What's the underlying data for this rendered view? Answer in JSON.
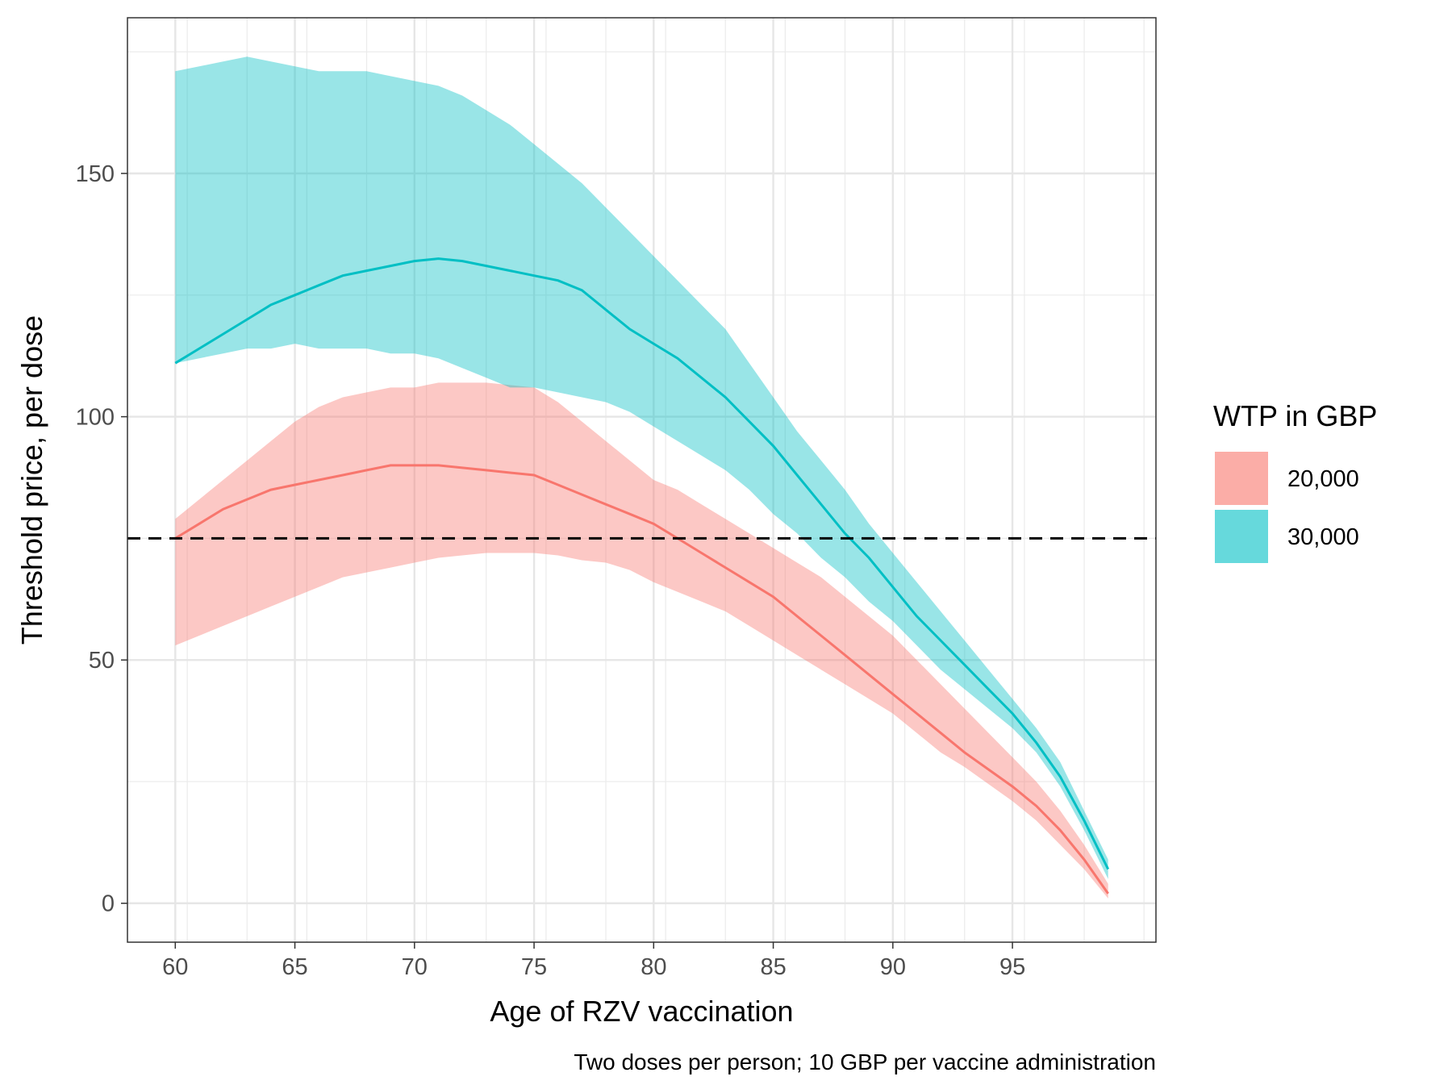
{
  "chart_data": {
    "type": "area",
    "title": "",
    "xlabel": "Age of RZV vaccination",
    "ylabel": "Threshold price, per dose",
    "caption": "Two doses per person; 10 GBP per vaccine administration",
    "xlim": [
      58,
      101
    ],
    "ylim": [
      -8,
      182
    ],
    "x_ticks": [
      60,
      65,
      70,
      75,
      80,
      85,
      90,
      95
    ],
    "x_tick_labels": [
      "60",
      "65",
      "70",
      "75",
      "80",
      "85",
      "90",
      "95"
    ],
    "y_ticks": [
      0,
      50,
      100,
      150
    ],
    "y_tick_labels": [
      "0",
      "50",
      "100",
      "150"
    ],
    "grid": true,
    "reference_line": {
      "y": 75,
      "style": "dashed",
      "color": "#000000"
    },
    "legend": {
      "title": "WTP in GBP",
      "position": "right",
      "entries": [
        "20,000",
        "30,000"
      ]
    },
    "x": [
      60,
      61,
      62,
      63,
      64,
      65,
      66,
      67,
      68,
      69,
      70,
      71,
      72,
      73,
      74,
      75,
      76,
      77,
      78,
      79,
      80,
      81,
      82,
      83,
      84,
      85,
      86,
      87,
      88,
      89,
      90,
      91,
      92,
      93,
      94,
      95,
      96,
      97,
      98,
      99
    ],
    "series": [
      {
        "name": "20,000",
        "color": "#F8766D",
        "values": [
          75,
          78,
          81,
          83,
          85,
          86,
          87,
          88,
          89,
          90,
          90,
          90,
          89.5,
          89,
          88.5,
          88,
          86,
          84,
          82,
          80,
          78,
          75,
          72,
          69,
          66,
          63,
          59,
          55,
          51,
          47,
          43,
          39,
          35,
          31,
          27.5,
          24,
          20,
          15,
          9,
          2
        ],
        "lower": [
          53,
          55,
          57,
          59,
          61,
          63,
          65,
          67,
          68,
          69,
          70,
          71,
          71.5,
          72,
          72,
          72,
          71.5,
          70.5,
          70,
          68.5,
          66,
          64,
          62,
          60,
          57,
          54,
          51,
          48,
          45,
          42,
          39,
          35,
          31,
          28,
          24.5,
          21,
          17,
          12,
          7,
          1
        ],
        "upper": [
          79,
          83,
          87,
          91,
          95,
          99,
          102,
          104,
          105,
          106,
          106,
          107,
          107,
          107,
          106.5,
          106,
          103,
          99,
          95,
          91,
          87,
          85,
          82,
          79,
          76,
          73,
          70,
          67,
          63,
          59,
          55,
          50,
          45,
          40,
          35,
          30,
          25,
          19,
          12,
          4
        ]
      },
      {
        "name": "30,000",
        "color": "#00BFC4",
        "values": [
          111,
          114,
          117,
          120,
          123,
          125,
          127,
          129,
          130,
          131,
          132,
          132.5,
          132,
          131,
          130,
          129,
          128,
          126,
          122,
          118,
          115,
          112,
          108,
          104,
          99,
          94,
          88,
          82,
          76,
          71,
          65,
          59,
          54,
          49,
          44,
          39,
          33,
          26,
          17,
          7
        ],
        "lower": [
          111,
          112,
          113,
          114,
          114,
          115,
          114,
          114,
          114,
          113,
          113,
          112,
          110,
          108,
          106,
          106,
          105,
          104,
          103,
          101,
          98,
          95,
          92,
          89,
          85,
          80,
          76,
          71,
          67,
          62,
          58,
          53,
          48,
          44,
          40,
          36,
          31,
          24,
          15,
          5
        ],
        "upper": [
          171,
          172,
          173,
          174,
          173,
          172,
          171,
          171,
          171,
          170,
          169,
          168,
          166,
          163,
          160,
          156,
          152,
          148,
          143,
          138,
          133,
          128,
          123,
          118,
          111,
          104,
          97,
          91,
          85,
          78,
          72,
          66,
          60,
          54,
          48,
          42,
          36,
          29,
          19,
          9
        ]
      }
    ]
  }
}
